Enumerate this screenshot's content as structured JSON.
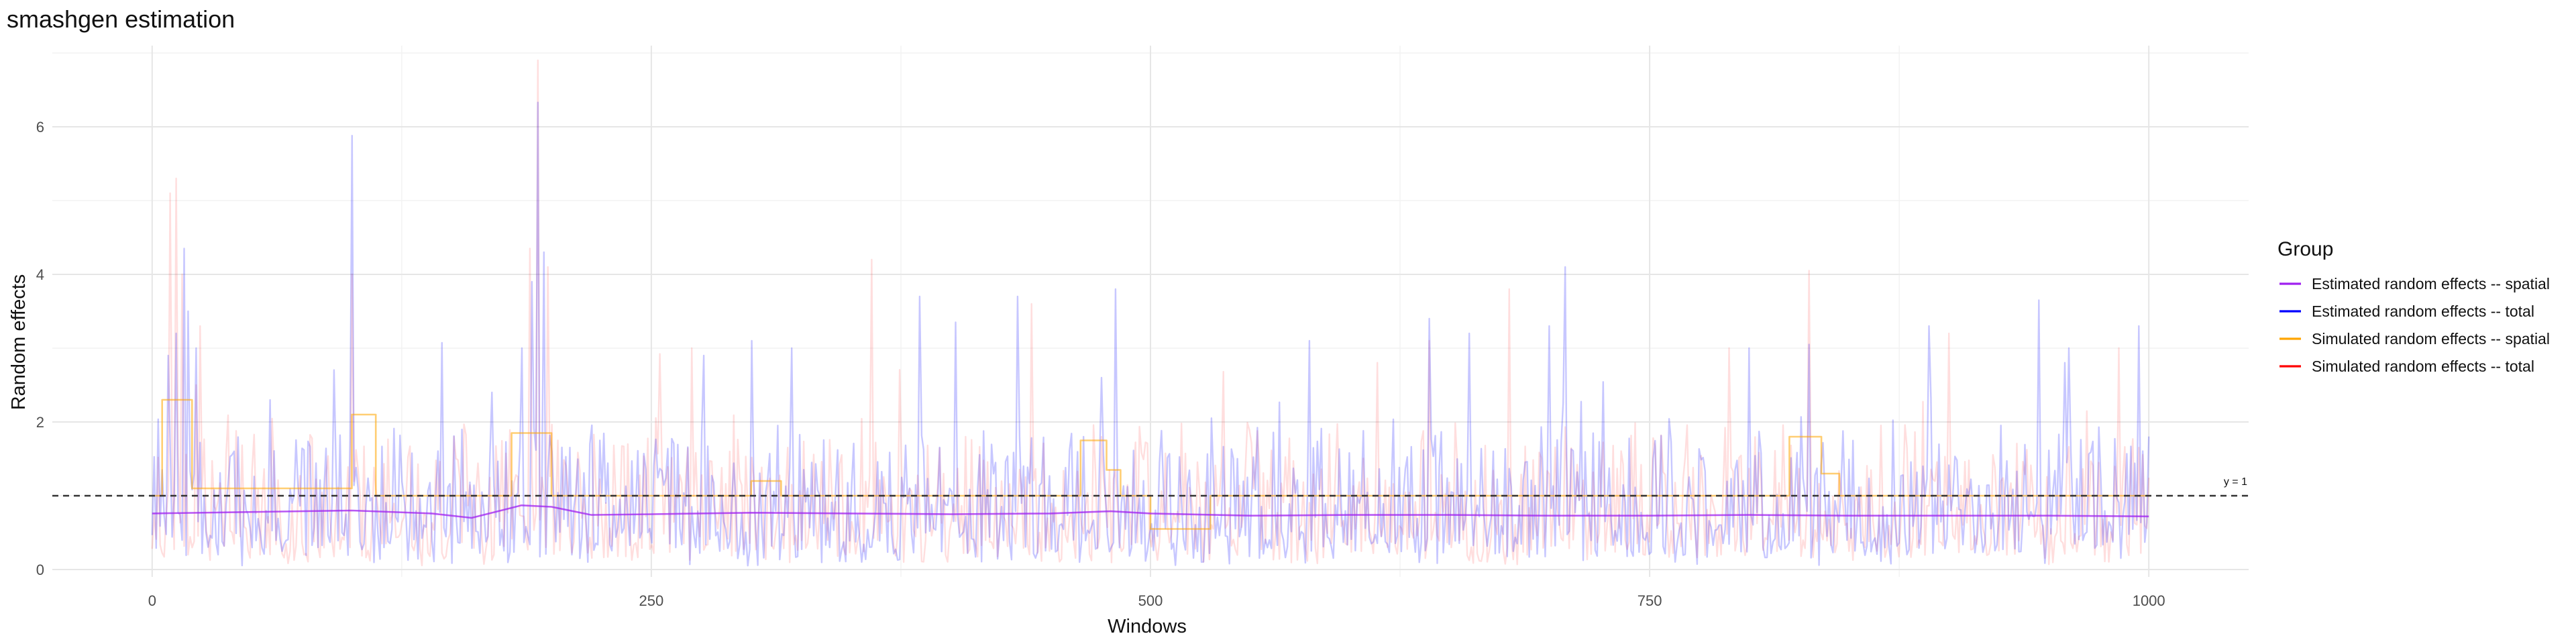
{
  "chart_data": {
    "type": "line",
    "title": "smashgen estimation",
    "xlabel": "Windows",
    "ylabel": "Random effects",
    "xlim": [
      -50,
      1050
    ],
    "ylim": [
      -0.1,
      7.1
    ],
    "x_ticks": [
      0,
      250,
      500,
      750,
      1000
    ],
    "y_ticks": [
      0,
      2,
      4,
      6
    ],
    "grid": true,
    "legend_position": "right",
    "legend_title": "Group",
    "reference_line": {
      "y": 1,
      "label": "y = 1",
      "style": "dashed",
      "color": "#333333"
    },
    "series": [
      {
        "name": "Estimated random effects -- spatial",
        "color": "#a020f0",
        "opacity": 0.75,
        "kind": "smooth",
        "x": [
          0,
          50,
          100,
          140,
          160,
          185,
          200,
          220,
          250,
          300,
          350,
          400,
          450,
          480,
          500,
          550,
          600,
          650,
          700,
          750,
          800,
          850,
          900,
          950,
          1000
        ],
        "y": [
          0.76,
          0.78,
          0.8,
          0.76,
          0.7,
          0.87,
          0.85,
          0.74,
          0.75,
          0.77,
          0.76,
          0.75,
          0.76,
          0.79,
          0.76,
          0.73,
          0.74,
          0.74,
          0.73,
          0.73,
          0.74,
          0.73,
          0.73,
          0.73,
          0.72
        ]
      },
      {
        "name": "Estimated random effects -- total",
        "color": "#0000ff",
        "opacity": 0.22,
        "kind": "noisy",
        "x_range": [
          0,
          1000
        ],
        "n": 1000,
        "seed": 7,
        "peaks": [
          [
            8,
            2.9
          ],
          [
            12,
            3.2
          ],
          [
            16,
            4.35
          ],
          [
            18,
            3.5
          ],
          [
            22,
            3.0
          ],
          [
            100,
            5.88
          ],
          [
            170,
            2.4
          ],
          [
            185,
            3.0
          ],
          [
            190,
            3.9
          ],
          [
            193,
            6.33
          ],
          [
            196,
            4.3
          ],
          [
            276,
            2.9
          ],
          [
            300,
            3.1
          ],
          [
            320,
            3.0
          ],
          [
            384,
            3.7
          ],
          [
            402,
            3.35
          ],
          [
            433,
            3.7
          ],
          [
            475,
            2.6
          ],
          [
            482,
            3.8
          ],
          [
            580,
            3.1
          ],
          [
            640,
            3.4
          ],
          [
            660,
            3.2
          ],
          [
            700,
            3.3
          ],
          [
            708,
            4.1
          ],
          [
            800,
            3.0
          ],
          [
            830,
            3.05
          ],
          [
            890,
            3.3
          ],
          [
            945,
            3.65
          ],
          [
            960,
            3.0
          ],
          [
            995,
            3.3
          ]
        ]
      },
      {
        "name": "Simulated random effects -- spatial",
        "color": "#ffa500",
        "opacity": 0.55,
        "kind": "step",
        "x": [
          0,
          5,
          20,
          100,
          112,
          120,
          180,
          200,
          270,
          300,
          315,
          450,
          465,
          478,
          485,
          500,
          530,
          540,
          820,
          836,
          845,
          1000
        ],
        "y": [
          1.0,
          2.3,
          1.1,
          2.1,
          1.0,
          1.0,
          1.85,
          1.0,
          1.0,
          1.2,
          1.0,
          1.0,
          1.75,
          1.35,
          1.0,
          0.55,
          1.0,
          1.0,
          1.8,
          1.3,
          1.0,
          1.0
        ]
      },
      {
        "name": "Simulated random effects -- total",
        "color": "#ff0000",
        "opacity": 0.13,
        "kind": "noisy",
        "x_range": [
          0,
          1000
        ],
        "n": 1000,
        "seed": 23,
        "peaks": [
          [
            9,
            5.1
          ],
          [
            12,
            5.3
          ],
          [
            15,
            4.0
          ],
          [
            24,
            3.3
          ],
          [
            100,
            4.0
          ],
          [
            189,
            4.35
          ],
          [
            193,
            6.9
          ],
          [
            198,
            4.1
          ],
          [
            270,
            3.0
          ],
          [
            360,
            4.2
          ],
          [
            440,
            3.6
          ],
          [
            640,
            3.1
          ],
          [
            680,
            3.8
          ],
          [
            790,
            3.0
          ],
          [
            830,
            4.05
          ],
          [
            900,
            3.2
          ],
          [
            985,
            3.0
          ]
        ]
      }
    ]
  }
}
